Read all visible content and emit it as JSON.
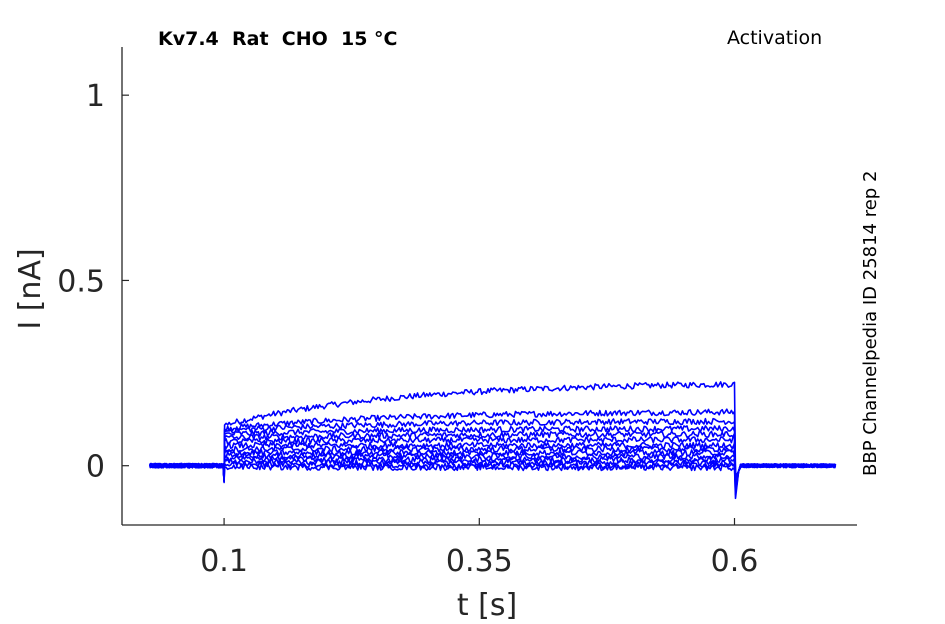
{
  "title_left": "Kv7.4  Rat  CHO  15 °C",
  "title_right": "Activation",
  "side_label": "BBP Channelpedia ID 25814 rep 2",
  "chart_data": {
    "type": "line",
    "xlabel": "t [s]",
    "ylabel": "I [nA]",
    "xlim": [
      0.0,
      0.72
    ],
    "ylim": [
      -0.16,
      1.13
    ],
    "xticks": [
      0.1,
      0.35,
      0.6
    ],
    "xtick_labels": [
      "0.1",
      "0.35",
      "0.6"
    ],
    "yticks": [
      0,
      0.5,
      1
    ],
    "ytick_labels": [
      "0",
      "0.5",
      "1"
    ],
    "grid": false,
    "line_color": "#0000ff",
    "pulse_start": 0.1,
    "pulse_end": 0.6,
    "t_start": 0.027,
    "t_end": 0.7,
    "series": [
      {
        "initial": 0.11,
        "final": 0.22
      },
      {
        "initial": 0.1,
        "final": 0.145
      },
      {
        "initial": 0.095,
        "final": 0.12
      },
      {
        "initial": 0.085,
        "final": 0.1
      },
      {
        "initial": 0.075,
        "final": 0.085
      },
      {
        "initial": 0.065,
        "final": 0.07
      },
      {
        "initial": 0.055,
        "final": 0.055
      },
      {
        "initial": 0.045,
        "final": 0.045
      },
      {
        "initial": 0.035,
        "final": 0.035
      },
      {
        "initial": 0.028,
        "final": 0.025
      },
      {
        "initial": 0.02,
        "final": 0.015
      },
      {
        "initial": 0.012,
        "final": 0.008
      },
      {
        "initial": 0.005,
        "final": 0.0
      },
      {
        "initial": -0.003,
        "final": -0.005
      }
    ]
  }
}
